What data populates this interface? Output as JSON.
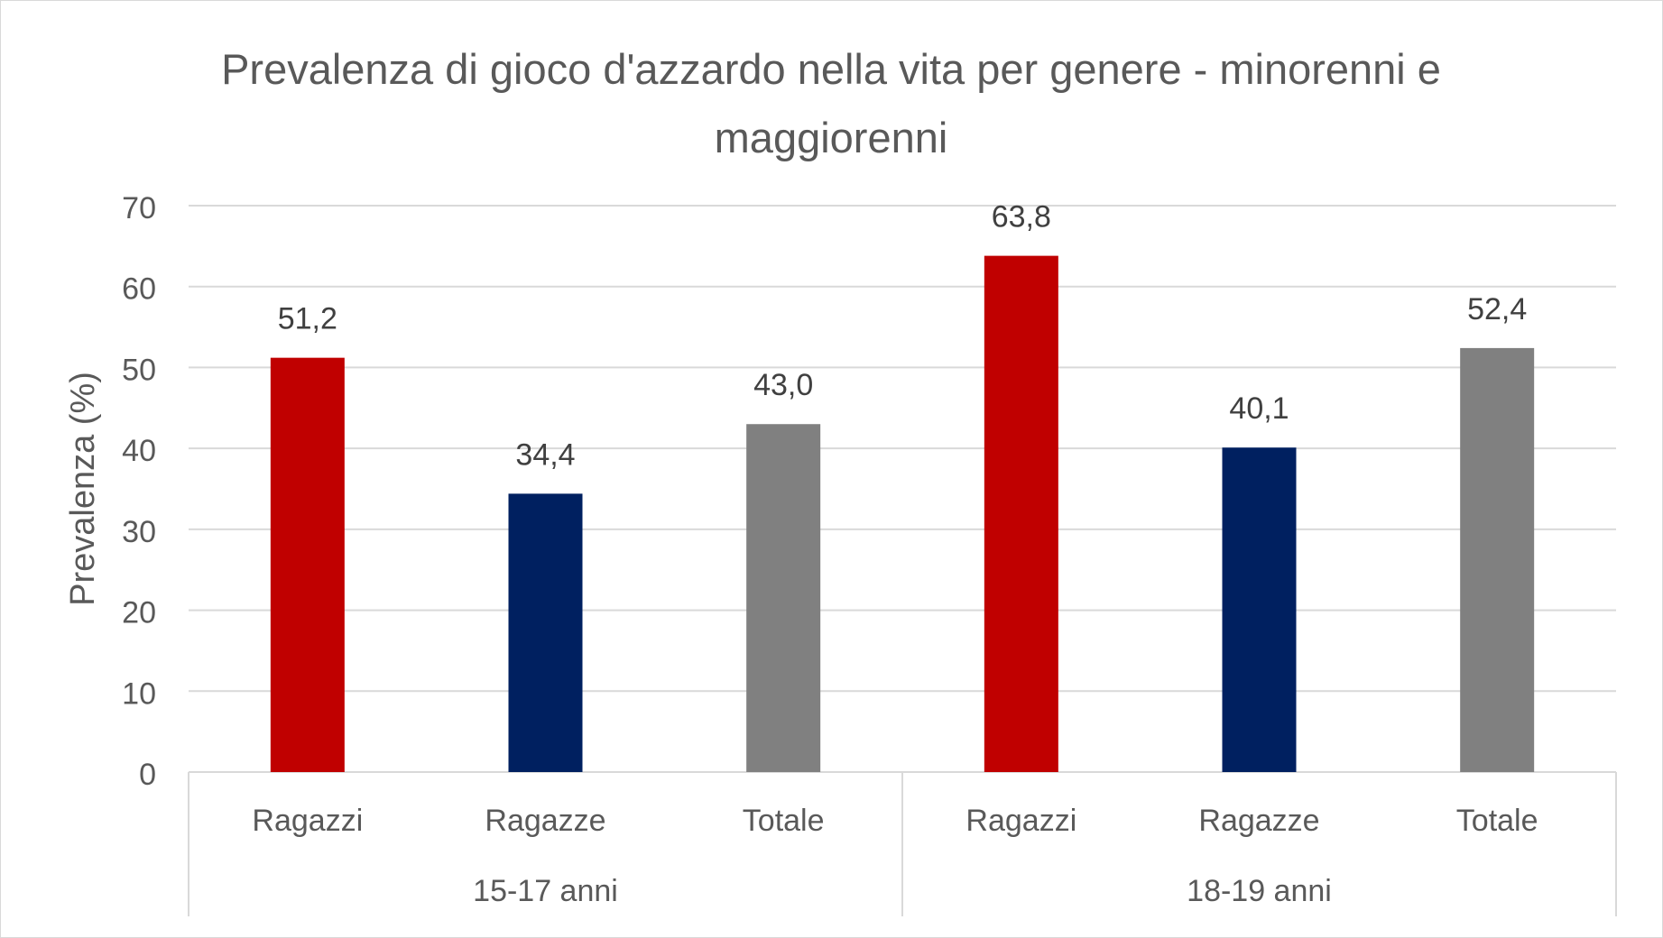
{
  "chart_data": {
    "type": "bar",
    "title": "Prevalenza di gioco d'azzardo nella vita per genere - minorenni e maggiorenni",
    "ylabel": "Prevalenza (%)",
    "xlabel": "",
    "ylim": [
      0,
      70
    ],
    "yticks": [
      0,
      10,
      20,
      30,
      40,
      50,
      60,
      70
    ],
    "grid": true,
    "legend": "none",
    "groups": [
      {
        "label": "15-17 anni",
        "bars": [
          {
            "category": "Ragazzi",
            "value": 51.2,
            "value_label": "51,2",
            "color": "#c00000"
          },
          {
            "category": "Ragazze",
            "value": 34.4,
            "value_label": "34,4",
            "color": "#002060"
          },
          {
            "category": "Totale",
            "value": 43.0,
            "value_label": "43,0",
            "color": "#808080"
          }
        ]
      },
      {
        "label": "18-19 anni",
        "bars": [
          {
            "category": "Ragazzi",
            "value": 63.8,
            "value_label": "63,8",
            "color": "#c00000"
          },
          {
            "category": "Ragazze",
            "value": 40.1,
            "value_label": "40,1",
            "color": "#002060"
          },
          {
            "category": "Totale",
            "value": 52.4,
            "value_label": "52,4",
            "color": "#808080"
          }
        ]
      }
    ]
  },
  "colors": {
    "gridline": "#d9d9d9",
    "axis_text": "#595959",
    "data_label": "#404040"
  }
}
